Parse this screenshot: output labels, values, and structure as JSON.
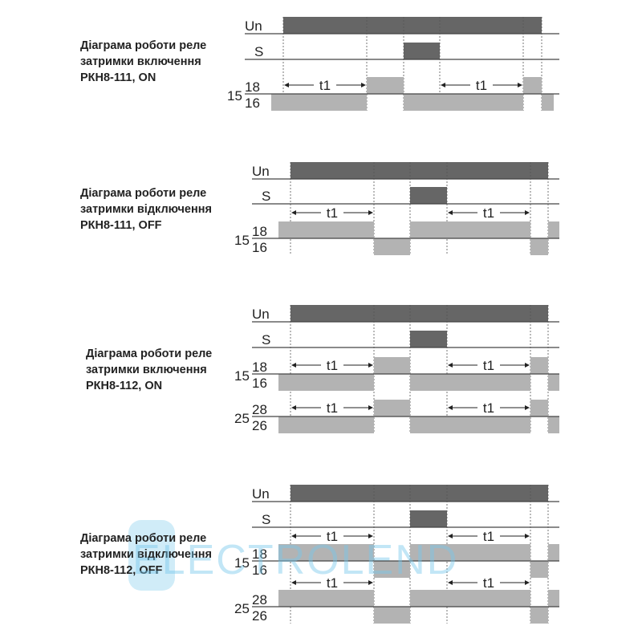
{
  "diagrams": [
    {
      "title": [
        "Діаграма роботи реле",
        "затримки включення",
        "РКН8-111, ON"
      ],
      "mode": "on",
      "signals": {
        "un": "Un",
        "s": "S"
      },
      "delay_label": "t1",
      "relays": [
        {
          "common": "15",
          "no": "18",
          "nc": "16"
        }
      ]
    },
    {
      "title": [
        "Діаграма роботи реле",
        "затримки відключення",
        "РКН8-111, OFF"
      ],
      "mode": "off",
      "signals": {
        "un": "Un",
        "s": "S"
      },
      "delay_label": "t1",
      "relays": [
        {
          "common": "15",
          "no": "18",
          "nc": "16"
        }
      ]
    },
    {
      "title": [
        "Діаграма роботи реле",
        "затримки включення",
        "РКН8-112, ON"
      ],
      "mode": "on",
      "signals": {
        "un": "Un",
        "s": "S"
      },
      "delay_label": "t1",
      "relays": [
        {
          "common": "15",
          "no": "18",
          "nc": "16"
        },
        {
          "common": "25",
          "no": "28",
          "nc": "26"
        }
      ]
    },
    {
      "title": [
        "Діаграма роботи реле",
        "затримки відключення",
        "РКН8-112, OFF"
      ],
      "mode": "off",
      "signals": {
        "un": "Un",
        "s": "S"
      },
      "delay_label": "t1",
      "relays": [
        {
          "common": "15",
          "no": "18",
          "nc": "16"
        },
        {
          "common": "25",
          "no": "28",
          "nc": "26"
        }
      ]
    }
  ],
  "watermark": "ELECTROLEND",
  "colors": {
    "signal_bar": "#666666",
    "contact_bar": "#b3b3b3",
    "line": "#444444"
  }
}
